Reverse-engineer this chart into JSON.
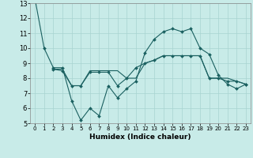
{
  "xlabel": "Humidex (Indice chaleur)",
  "background_color": "#c8ebe8",
  "grid_color": "#a8d4d0",
  "line_color": "#1a6060",
  "xlim": [
    -0.5,
    23.5
  ],
  "ylim": [
    5,
    13
  ],
  "yticks": [
    5,
    6,
    7,
    8,
    9,
    10,
    11,
    12,
    13
  ],
  "xticks": [
    0,
    1,
    2,
    3,
    4,
    5,
    6,
    7,
    8,
    9,
    10,
    11,
    12,
    13,
    14,
    15,
    16,
    17,
    18,
    19,
    20,
    21,
    22,
    23
  ],
  "line1_x": [
    0,
    1,
    2,
    3,
    4,
    5,
    6,
    7,
    8,
    9,
    10,
    11,
    12,
    13,
    14,
    15,
    16,
    17,
    18,
    19,
    20,
    21,
    22,
    23
  ],
  "line1_y": [
    13.3,
    10.0,
    8.7,
    8.7,
    6.5,
    5.2,
    6.0,
    5.5,
    7.5,
    6.7,
    7.3,
    7.8,
    9.7,
    10.6,
    11.1,
    11.3,
    11.1,
    11.3,
    10.0,
    9.6,
    8.2,
    7.6,
    7.3,
    7.6
  ],
  "line2_x": [
    2,
    3,
    4,
    5,
    6,
    7,
    8,
    9,
    10,
    11,
    12,
    13,
    14,
    15,
    16,
    17,
    18,
    19,
    20,
    21,
    22,
    23
  ],
  "line2_y": [
    8.6,
    8.6,
    7.5,
    7.5,
    8.5,
    8.5,
    8.5,
    8.5,
    8.0,
    8.0,
    9.0,
    9.2,
    9.5,
    9.5,
    9.5,
    9.5,
    9.5,
    8.0,
    8.0,
    8.0,
    7.8,
    7.6
  ],
  "line3_x": [
    2,
    3,
    4,
    5,
    6,
    7,
    8,
    9,
    10,
    11,
    12,
    13,
    14,
    15,
    16,
    17,
    18,
    19,
    20,
    21,
    22,
    23
  ],
  "line3_y": [
    8.6,
    8.5,
    7.5,
    7.5,
    8.4,
    8.4,
    8.4,
    7.5,
    8.0,
    8.7,
    9.0,
    9.2,
    9.5,
    9.5,
    9.5,
    9.5,
    9.5,
    8.0,
    8.0,
    7.8,
    7.8,
    7.6
  ]
}
